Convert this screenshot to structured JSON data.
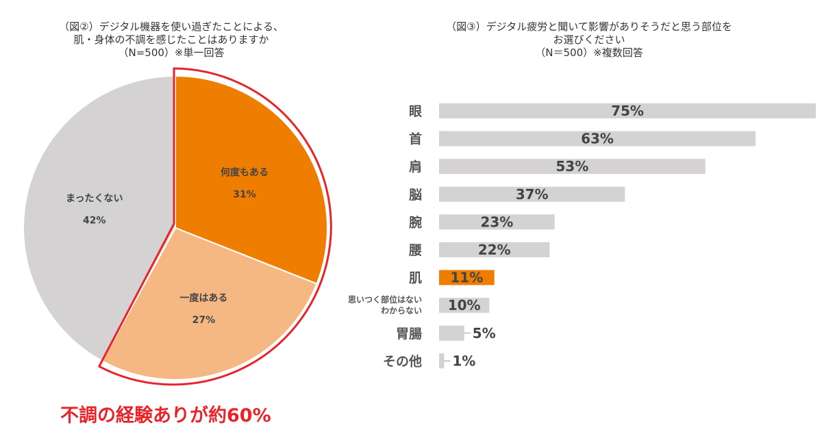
{
  "chart_data": [
    {
      "type": "pie",
      "title_lines": [
        "（図②）デジタル機器を使い過ぎたことによる、",
        "肌・身体の不調を感じたことはありますか",
        "（N=500）※単一回答"
      ],
      "unit": "%",
      "slices": [
        {
          "label": "何度もある",
          "value": 31,
          "color": "#ef7d00"
        },
        {
          "label": "一度はある",
          "value": 27,
          "color": "#f5b883"
        },
        {
          "label": "まったくない",
          "value": 42,
          "color": "#d4d2d2"
        }
      ],
      "highlight_color": "#e8242a",
      "conclusion": "不調の経験ありが約60%"
    },
    {
      "type": "bar",
      "orientation": "horizontal",
      "title_lines": [
        "（図③）デジタル疲労と聞いて影響がありそうだと思う部位を",
        "お選びください",
        "（N＝500）※複数回答"
      ],
      "unit": "%",
      "xlim": [
        0,
        75
      ],
      "categories": [
        "眼",
        "首",
        "肩",
        "脳",
        "腕",
        "腰",
        "肌",
        "思いつく部位はない\nわからない",
        "胃腸",
        "その他"
      ],
      "values": [
        75,
        63,
        53,
        37,
        23,
        22,
        11,
        10,
        5,
        1
      ],
      "bar_color": "#d4d2d2",
      "highlight_category": "肌",
      "highlight_color": "#ef7d00"
    }
  ]
}
